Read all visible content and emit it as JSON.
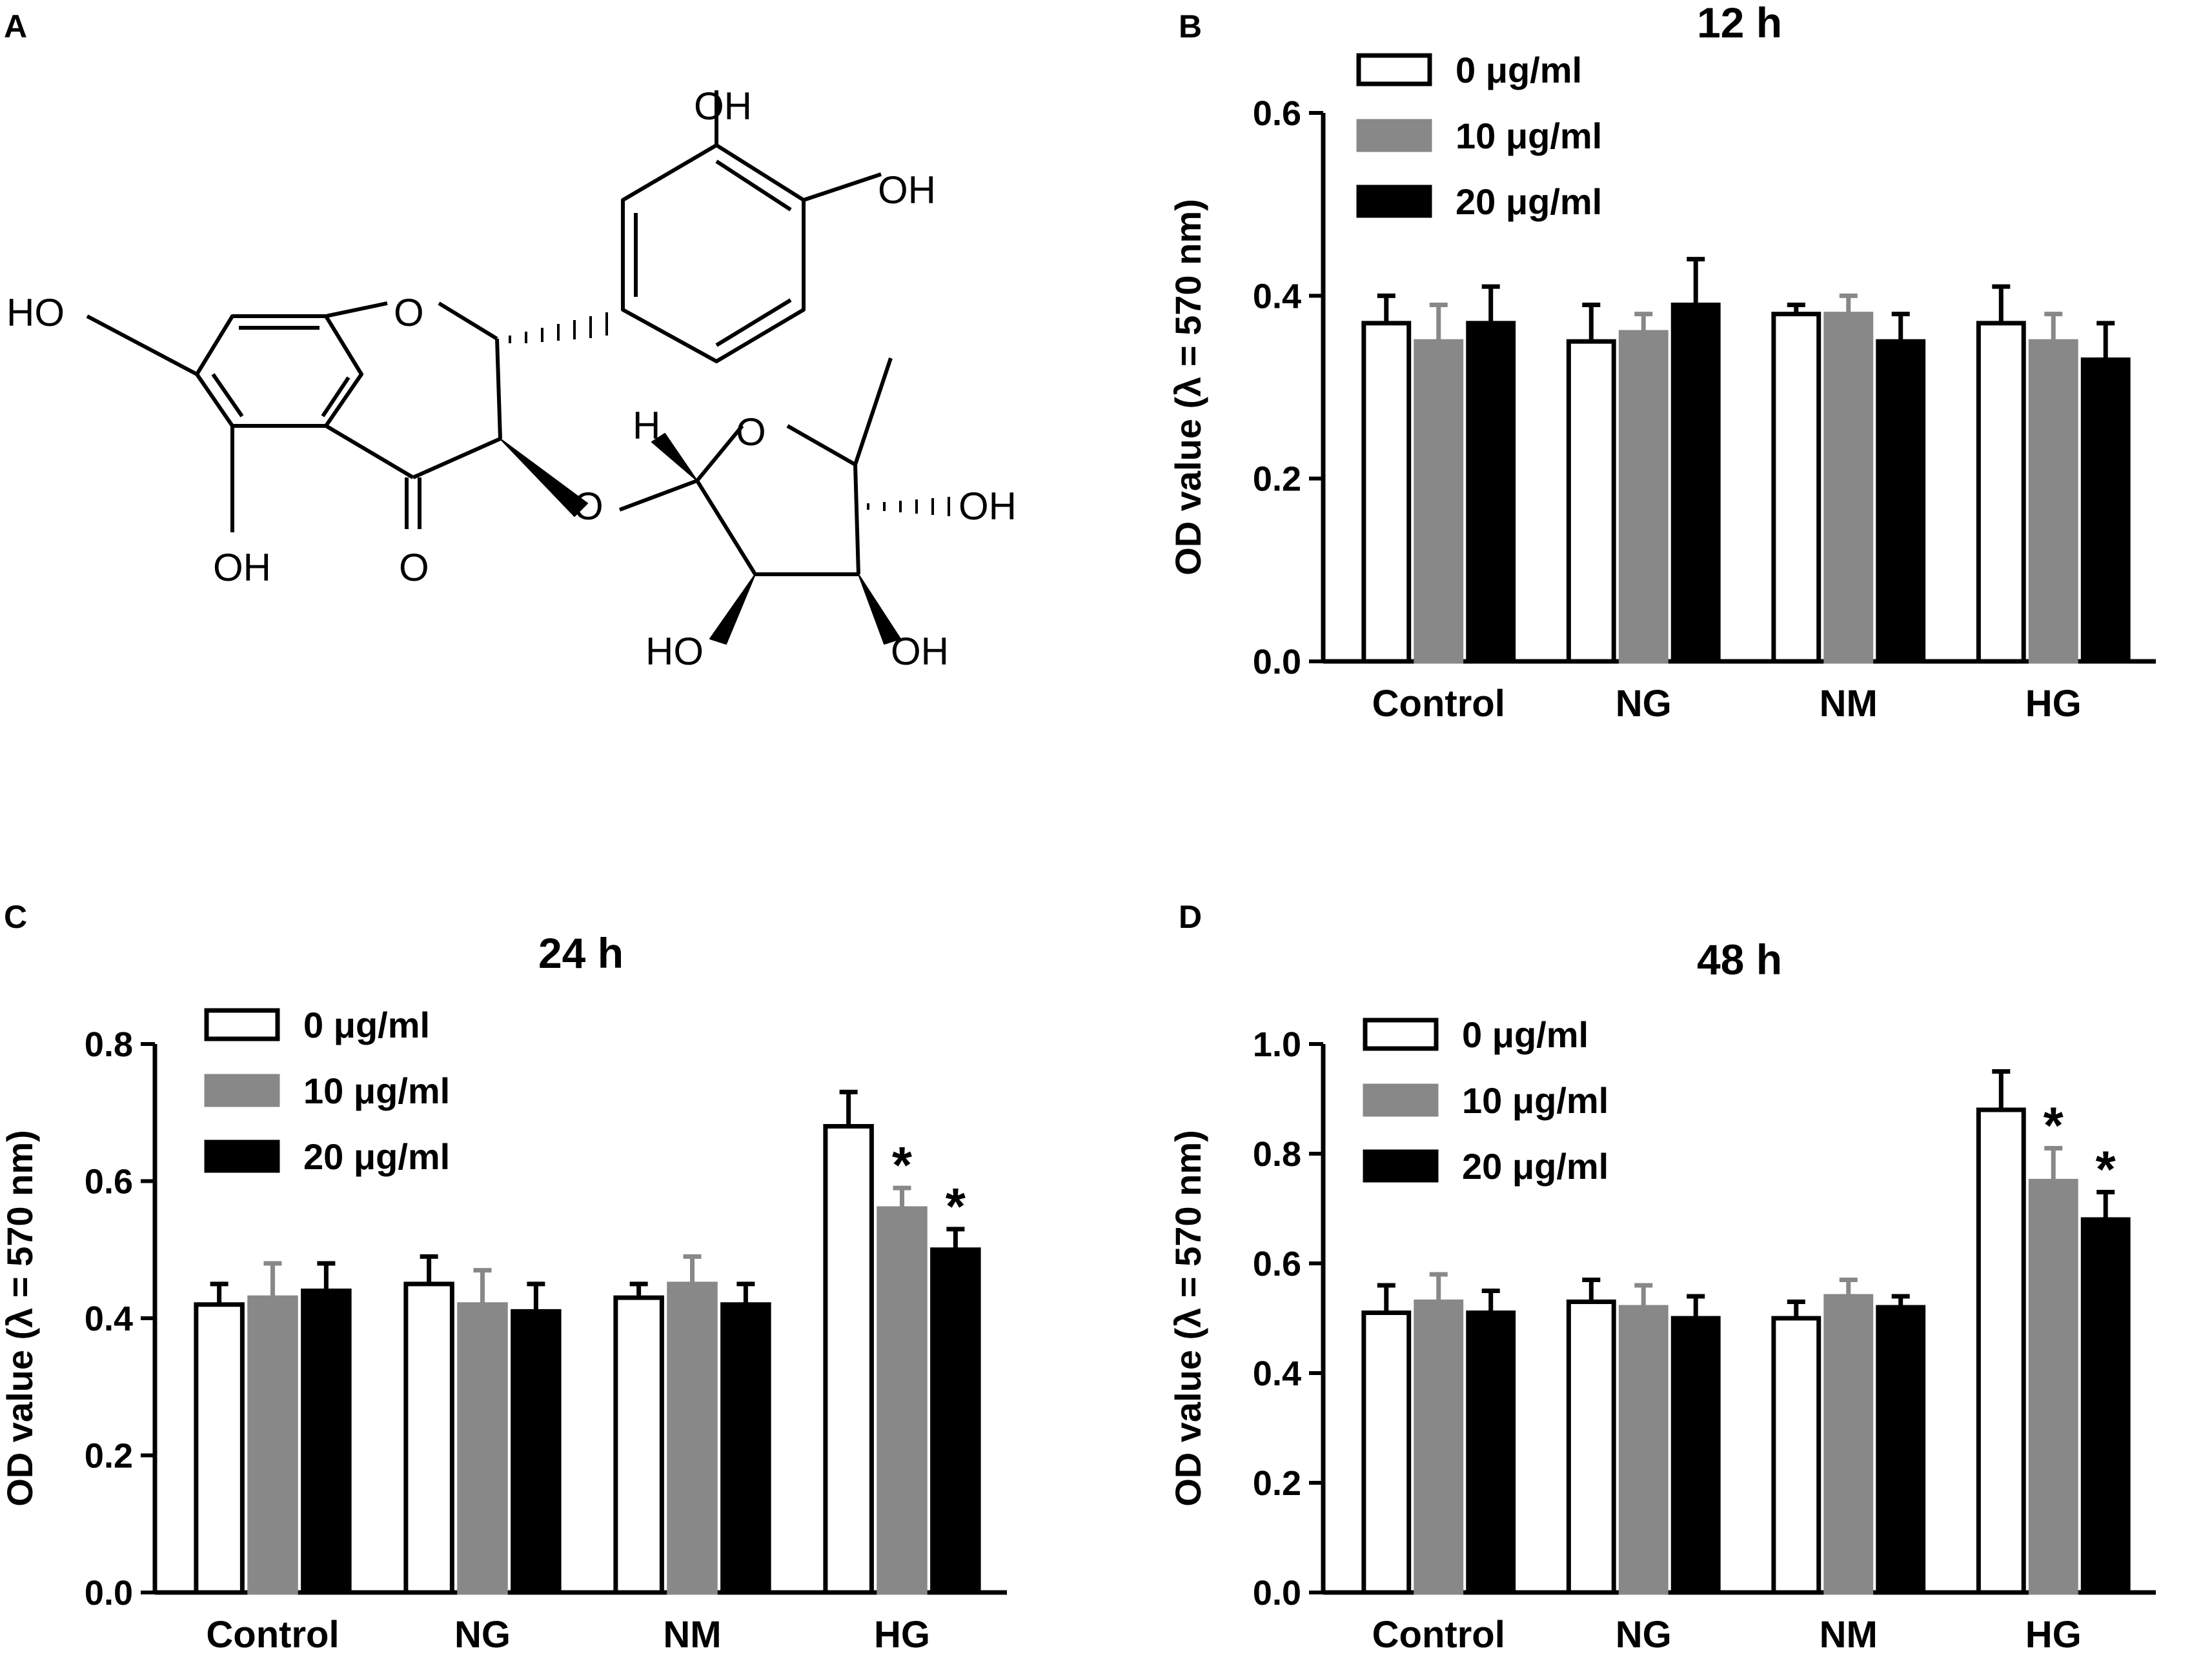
{
  "panel_letters": [
    "A",
    "B",
    "C",
    "D"
  ],
  "molecule_labels": [
    "OH",
    "OH",
    "HO",
    "O",
    "O",
    "OH",
    "O",
    "H",
    "O",
    "OH",
    "HO",
    "OH",
    "O"
  ],
  "colors": {
    "0 µg/ml": "#ffffff",
    "10 µg/ml": "#888888",
    "20 µg/ml": "#000000"
  },
  "chart_data": [
    {
      "type": "bar",
      "panel": "B",
      "title": "12 h",
      "xlabel": "",
      "ylabel": "OD value (λ = 570 nm)",
      "ylim": [
        0,
        0.6
      ],
      "yticks": [
        "0.0",
        "0.2",
        "0.4",
        "0.6"
      ],
      "categories": [
        "Control",
        "NG",
        "NM",
        "HG"
      ],
      "legend_position": "top-left",
      "series": [
        {
          "name": "0 μg/ml",
          "values": [
            0.37,
            0.35,
            0.38,
            0.37
          ],
          "errors": [
            0.03,
            0.04,
            0.01,
            0.04
          ]
        },
        {
          "name": "10 μg/ml",
          "values": [
            0.35,
            0.36,
            0.38,
            0.35
          ],
          "errors": [
            0.04,
            0.02,
            0.02,
            0.03
          ]
        },
        {
          "name": "20 μg/ml",
          "values": [
            0.37,
            0.39,
            0.35,
            0.33
          ],
          "errors": [
            0.04,
            0.05,
            0.03,
            0.04
          ]
        }
      ],
      "annotations": []
    },
    {
      "type": "bar",
      "panel": "C",
      "title": "24 h",
      "xlabel": "",
      "ylabel": "OD value (λ = 570 nm)",
      "ylim": [
        0,
        0.8
      ],
      "yticks": [
        "0.0",
        "0.2",
        "0.4",
        "0.6",
        "0.8"
      ],
      "categories": [
        "Control",
        "NG",
        "NM",
        "HG"
      ],
      "legend_position": "top-left",
      "series": [
        {
          "name": "0 μg/ml",
          "values": [
            0.42,
            0.45,
            0.43,
            0.68
          ],
          "errors": [
            0.03,
            0.04,
            0.02,
            0.05
          ]
        },
        {
          "name": "10 μg/ml",
          "values": [
            0.43,
            0.42,
            0.45,
            0.56
          ],
          "errors": [
            0.05,
            0.05,
            0.04,
            0.03
          ]
        },
        {
          "name": "20 μg/ml",
          "values": [
            0.44,
            0.41,
            0.42,
            0.5
          ],
          "errors": [
            0.04,
            0.04,
            0.03,
            0.03
          ]
        }
      ],
      "annotations": [
        {
          "text": "*",
          "category": "HG",
          "series": "10 μg/ml"
        },
        {
          "text": "*",
          "category": "HG",
          "series": "20 μg/ml"
        }
      ]
    },
    {
      "type": "bar",
      "panel": "D",
      "title": "48 h",
      "xlabel": "",
      "ylabel": "OD value (λ = 570 nm)",
      "ylim": [
        0,
        1.0
      ],
      "yticks": [
        "0.0",
        "0.2",
        "0.4",
        "0.6",
        "0.8",
        "1.0"
      ],
      "categories": [
        "Control",
        "NG",
        "NM",
        "HG"
      ],
      "legend_position": "top-left",
      "series": [
        {
          "name": "0 μg/ml",
          "values": [
            0.51,
            0.53,
            0.5,
            0.88
          ],
          "errors": [
            0.05,
            0.04,
            0.03,
            0.07
          ]
        },
        {
          "name": "10 μg/ml",
          "values": [
            0.53,
            0.52,
            0.54,
            0.75
          ],
          "errors": [
            0.05,
            0.04,
            0.03,
            0.06
          ]
        },
        {
          "name": "20 μg/ml",
          "values": [
            0.51,
            0.5,
            0.52,
            0.68
          ],
          "errors": [
            0.04,
            0.04,
            0.02,
            0.05
          ]
        }
      ],
      "annotations": [
        {
          "text": "*",
          "category": "HG",
          "series": "10 μg/ml"
        },
        {
          "text": "*",
          "category": "HG",
          "series": "20 μg/ml"
        }
      ]
    }
  ]
}
